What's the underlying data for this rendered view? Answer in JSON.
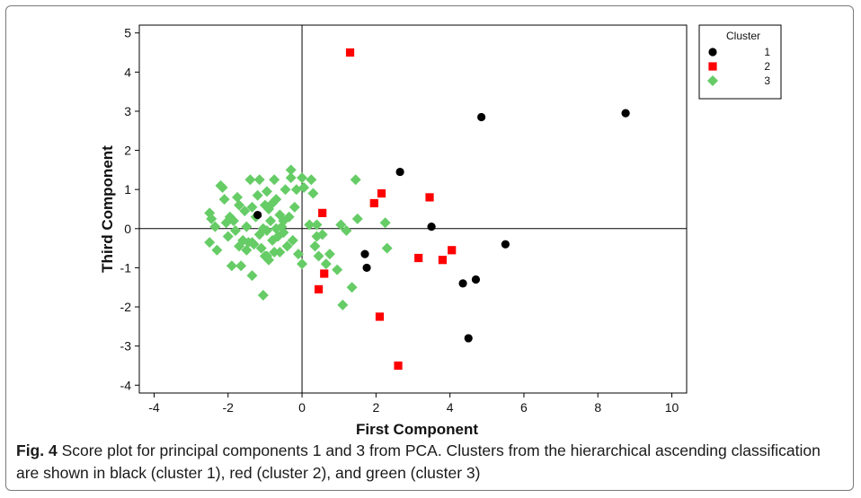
{
  "chart_data": {
    "type": "scatter",
    "xlabel": "First Component",
    "ylabel": "Third Component",
    "xlim": [
      -4.4,
      10.4
    ],
    "ylim": [
      -4.2,
      5.2
    ],
    "xticks": [
      -4,
      -2,
      0,
      2,
      4,
      6,
      8,
      10
    ],
    "yticks": [
      -4,
      -3,
      -2,
      -1,
      0,
      1,
      2,
      3,
      4,
      5
    ],
    "reference_lines": {
      "x": 0,
      "y": 0
    },
    "grid": false,
    "legend": {
      "title": "Cluster",
      "position": "top-right"
    },
    "series": [
      {
        "name": "1",
        "color": "#000000",
        "marker": "circle",
        "points": [
          [
            -1.2,
            0.35
          ],
          [
            1.7,
            -0.65
          ],
          [
            1.75,
            -1.0
          ],
          [
            2.65,
            1.45
          ],
          [
            3.5,
            0.05
          ],
          [
            4.35,
            -1.4
          ],
          [
            4.5,
            -2.8
          ],
          [
            4.7,
            -1.3
          ],
          [
            4.85,
            2.85
          ],
          [
            5.5,
            -0.4
          ],
          [
            8.75,
            2.95
          ]
        ]
      },
      {
        "name": "2",
        "color": "#ff0000",
        "marker": "square",
        "points": [
          [
            1.3,
            4.5
          ],
          [
            0.55,
            0.4
          ],
          [
            0.6,
            -1.15
          ],
          [
            0.45,
            -1.55
          ],
          [
            1.95,
            0.65
          ],
          [
            2.15,
            0.9
          ],
          [
            2.1,
            -2.25
          ],
          [
            2.6,
            -3.5
          ],
          [
            3.15,
            -0.75
          ],
          [
            3.45,
            0.8
          ],
          [
            3.8,
            -0.8
          ],
          [
            4.05,
            -0.55
          ]
        ]
      },
      {
        "name": "3",
        "color": "#66cc66",
        "marker": "diamond",
        "points": [
          [
            -2.5,
            0.4
          ],
          [
            -2.5,
            -0.35
          ],
          [
            -2.45,
            0.25
          ],
          [
            -2.35,
            0.05
          ],
          [
            -2.3,
            -0.55
          ],
          [
            -2.2,
            1.1
          ],
          [
            -2.15,
            1.05
          ],
          [
            -2.1,
            0.75
          ],
          [
            -2.05,
            0.15
          ],
          [
            -2.0,
            -0.2
          ],
          [
            -1.95,
            0.3
          ],
          [
            -1.9,
            -0.95
          ],
          [
            -1.85,
            0.2
          ],
          [
            -1.8,
            -0.05
          ],
          [
            -1.75,
            0.8
          ],
          [
            -1.7,
            -0.45
          ],
          [
            -1.7,
            0.6
          ],
          [
            -1.65,
            -0.95
          ],
          [
            -1.6,
            -0.3
          ],
          [
            -1.55,
            0.45
          ],
          [
            -1.5,
            0.05
          ],
          [
            -1.5,
            -0.55
          ],
          [
            -1.45,
            -0.35
          ],
          [
            -1.4,
            1.25
          ],
          [
            -1.35,
            -1.2
          ],
          [
            -1.35,
            0.55
          ],
          [
            -1.3,
            -0.4
          ],
          [
            -1.25,
            0.3
          ],
          [
            -1.2,
            0.85
          ],
          [
            -1.15,
            -0.15
          ],
          [
            -1.15,
            1.25
          ],
          [
            -1.1,
            -0.5
          ],
          [
            -1.05,
            0.0
          ],
          [
            -1.05,
            -1.7
          ],
          [
            -1.0,
            0.6
          ],
          [
            -1.0,
            -0.7
          ],
          [
            -0.95,
            0.95
          ],
          [
            -0.95,
            -0.05
          ],
          [
            -0.9,
            0.5
          ],
          [
            -0.9,
            -0.8
          ],
          [
            -0.85,
            0.2
          ],
          [
            -0.8,
            -0.3
          ],
          [
            -0.8,
            0.65
          ],
          [
            -0.75,
            1.25
          ],
          [
            -0.75,
            -0.6
          ],
          [
            -0.7,
            0.0
          ],
          [
            -0.7,
            0.75
          ],
          [
            -0.65,
            -0.2
          ],
          [
            -0.6,
            0.35
          ],
          [
            -0.6,
            -0.6
          ],
          [
            -0.55,
            0.05
          ],
          [
            -0.5,
            -0.1
          ],
          [
            -0.5,
            0.2
          ],
          [
            -0.45,
            1.0
          ],
          [
            -0.4,
            -0.45
          ],
          [
            -0.35,
            0.3
          ],
          [
            -0.3,
            1.5
          ],
          [
            -0.3,
            1.3
          ],
          [
            -0.25,
            -0.3
          ],
          [
            -0.2,
            0.55
          ],
          [
            -0.15,
            1.0
          ],
          [
            -0.1,
            -0.65
          ],
          [
            0.0,
            1.3
          ],
          [
            0.0,
            -0.9
          ],
          [
            0.05,
            1.05
          ],
          [
            0.2,
            0.1
          ],
          [
            0.25,
            1.25
          ],
          [
            0.3,
            0.9
          ],
          [
            0.35,
            -0.45
          ],
          [
            0.4,
            0.1
          ],
          [
            0.4,
            -0.2
          ],
          [
            0.45,
            -0.7
          ],
          [
            0.55,
            -0.15
          ],
          [
            0.65,
            -0.9
          ],
          [
            0.75,
            -0.65
          ],
          [
            0.95,
            -1.05
          ],
          [
            1.05,
            0.1
          ],
          [
            1.1,
            -1.95
          ],
          [
            1.2,
            -0.05
          ],
          [
            1.35,
            -1.5
          ],
          [
            1.45,
            1.25
          ],
          [
            1.5,
            0.25
          ],
          [
            2.25,
            0.15
          ],
          [
            2.3,
            -0.5
          ],
          [
            -1.35,
            -0.35
          ],
          [
            -0.95,
            -0.7
          ]
        ]
      }
    ]
  },
  "caption": {
    "label": "Fig. 4",
    "text": " Score plot for principal components 1 and 3 from PCA. Clusters from the hierarchical ascending classification are shown in black (cluster 1), red (cluster 2), and green (cluster 3)"
  }
}
